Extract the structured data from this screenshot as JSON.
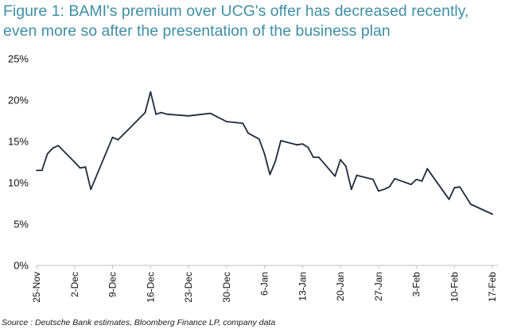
{
  "title": "Figure 1: BAMI's premium over UCG's offer has decreased recently, even more so after the presentation of the business plan",
  "source": "Source : Deutsche Bank estimates, Bloomberg Finance LP, company data",
  "colors": {
    "line": "#1f2a3a",
    "title": "#3f8fa5",
    "axis": "#bfbfbf"
  },
  "chart_data": {
    "type": "line",
    "title": "",
    "xlabel": "",
    "ylabel": "",
    "ylim": [
      0,
      25
    ],
    "y_ticks": [
      "0%",
      "5%",
      "10%",
      "15%",
      "20%",
      "25%"
    ],
    "y_tick_values": [
      0,
      5,
      10,
      15,
      20,
      25
    ],
    "x_ticks": [
      "25-Nov",
      "2-Dec",
      "9-Dec",
      "16-Dec",
      "23-Dec",
      "30-Dec",
      "6-Jan",
      "13-Jan",
      "20-Jan",
      "27-Jan",
      "3-Feb",
      "10-Feb",
      "17-Feb"
    ],
    "x_tick_days": [
      0,
      7,
      14,
      21,
      28,
      35,
      42,
      49,
      56,
      63,
      70,
      77,
      84
    ],
    "grid": false,
    "legend": "none",
    "series": [
      {
        "points": [
          [
            0,
            11.5
          ],
          [
            1,
            11.5
          ],
          [
            2,
            13.5
          ],
          [
            3,
            14.2
          ],
          [
            4,
            14.5
          ],
          [
            7,
            12.5
          ],
          [
            8,
            11.8
          ],
          [
            9,
            11.9
          ],
          [
            10,
            9.2
          ],
          [
            14,
            15.5
          ],
          [
            15,
            15.2
          ],
          [
            17,
            16.5
          ],
          [
            20,
            18.5
          ],
          [
            21,
            21.0
          ],
          [
            22,
            18.3
          ],
          [
            23,
            18.5
          ],
          [
            24,
            18.3
          ],
          [
            28,
            18.1
          ],
          [
            32,
            18.4
          ],
          [
            35,
            17.4
          ],
          [
            38,
            17.2
          ],
          [
            39,
            16.0
          ],
          [
            41,
            15.3
          ],
          [
            42,
            13.5
          ],
          [
            43,
            11.0
          ],
          [
            44,
            12.6
          ],
          [
            45,
            15.1
          ],
          [
            48,
            14.6
          ],
          [
            49,
            14.7
          ],
          [
            50,
            14.3
          ],
          [
            51,
            13.1
          ],
          [
            52,
            13.1
          ],
          [
            55,
            10.8
          ],
          [
            56,
            12.8
          ],
          [
            57,
            12.0
          ],
          [
            58,
            9.2
          ],
          [
            59,
            10.9
          ],
          [
            62,
            10.4
          ],
          [
            63,
            9.0
          ],
          [
            64,
            9.2
          ],
          [
            65,
            9.5
          ],
          [
            66,
            10.5
          ],
          [
            69,
            9.8
          ],
          [
            70,
            10.4
          ],
          [
            71,
            10.2
          ],
          [
            72,
            11.7
          ],
          [
            76,
            8.0
          ],
          [
            77,
            9.4
          ],
          [
            78,
            9.5
          ],
          [
            80,
            7.4
          ],
          [
            84,
            6.2
          ]
        ]
      }
    ]
  }
}
